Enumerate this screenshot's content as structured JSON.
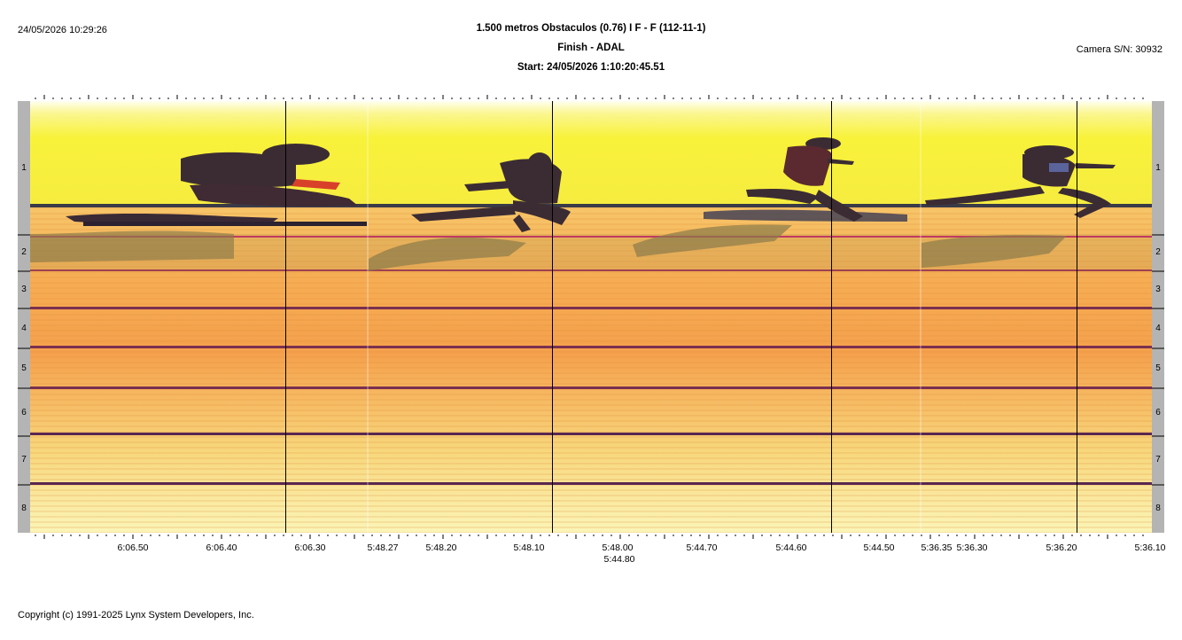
{
  "header": {
    "timestamp": "24/05/2026 10:29:26",
    "event_title": "1.500 metros Obstaculos (0.76) I F - F (112-11-1)",
    "finish_line": "Finish - ADAL",
    "start_time": "Start: 24/05/2026 1:10:20:45.51",
    "camera": "Camera S/N: 30932"
  },
  "lanes": [
    "1",
    "2",
    "3",
    "4",
    "5",
    "6",
    "7",
    "8"
  ],
  "time_labels": [
    "6:06.50",
    "6:06.40",
    "6:06.30",
    "5:48.27",
    "5:48.20",
    "5:48.10",
    "5:48.00",
    "5:44.80",
    "5:44.70",
    "5:44.60",
    "5:44.50",
    "5:36.35",
    "5:36.30",
    "5:36.20",
    "5:36.10"
  ],
  "footer": {
    "copyright": "Copyright (c) 1991-2025 Lynx System Developers, Inc."
  },
  "colors": {
    "sky_yellow": "#f8f23a",
    "track_orange": "#f5a04c",
    "lane_line": "#7a3050",
    "runner_dark": "#3b2c34",
    "shadow": "#8a7a4a"
  }
}
